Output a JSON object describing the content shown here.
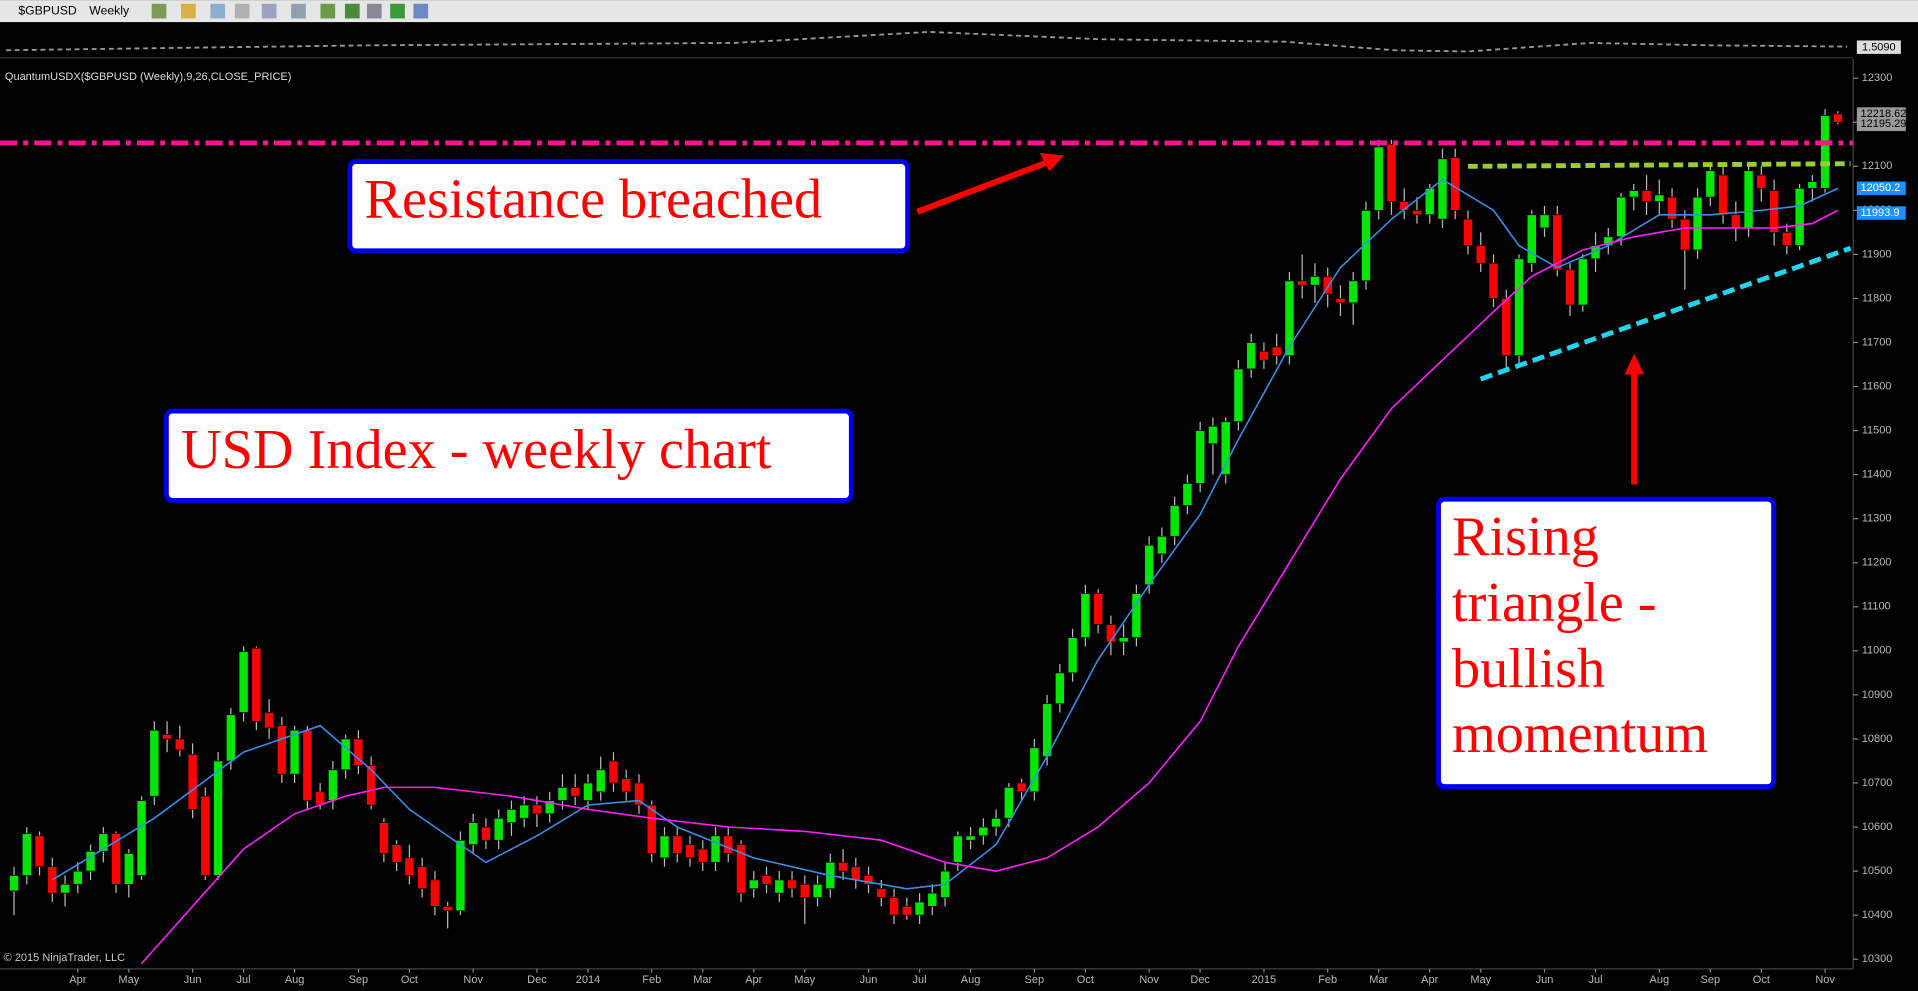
{
  "toolbar": {
    "instrument": "$GBPUSD",
    "period": "Weekly"
  },
  "chart_data": {
    "type": "candlestick",
    "title": "QuantumUSDX($GBPUSD (Weekly),9,26,CLOSE_PRICE)",
    "overview_label": "1.5090",
    "copyright": "© 2015 NinjaTrader, LLC",
    "up_color": "#00e600",
    "down_color": "#ff0000",
    "xlim": [
      -1.1,
      144.2
    ],
    "ylim": [
      10278,
      12344
    ],
    "yticks": [
      10300,
      10400,
      10500,
      10600,
      10700,
      10800,
      10900,
      11000,
      11100,
      11200,
      11300,
      11400,
      11500,
      11600,
      11700,
      11800,
      11900,
      12000,
      12100,
      12200,
      12300
    ],
    "xticks": [
      {
        "value": 5,
        "label": "Apr"
      },
      {
        "value": 9,
        "label": "May"
      },
      {
        "value": 14,
        "label": "Jun"
      },
      {
        "value": 18,
        "label": "Jul"
      },
      {
        "value": 22,
        "label": "Aug"
      },
      {
        "value": 27,
        "label": "Sep"
      },
      {
        "value": 31,
        "label": "Oct"
      },
      {
        "value": 36,
        "label": "Nov"
      },
      {
        "value": 41,
        "label": "Dec"
      },
      {
        "value": 45,
        "label": "2014"
      },
      {
        "value": 50,
        "label": "Feb"
      },
      {
        "value": 54,
        "label": "Mar"
      },
      {
        "value": 58,
        "label": "Apr"
      },
      {
        "value": 62,
        "label": "May"
      },
      {
        "value": 67,
        "label": "Jun"
      },
      {
        "value": 71,
        "label": "Jul"
      },
      {
        "value": 75,
        "label": "Aug"
      },
      {
        "value": 80,
        "label": "Sep"
      },
      {
        "value": 84,
        "label": "Oct"
      },
      {
        "value": 89,
        "label": "Nov"
      },
      {
        "value": 93,
        "label": "Dec"
      },
      {
        "value": 98,
        "label": "2015"
      },
      {
        "value": 103,
        "label": "Feb"
      },
      {
        "value": 107,
        "label": "Mar"
      },
      {
        "value": 111,
        "label": "Apr"
      },
      {
        "value": 115,
        "label": "May"
      },
      {
        "value": 120,
        "label": "Jun"
      },
      {
        "value": 124,
        "label": "Jul"
      },
      {
        "value": 129,
        "label": "Aug"
      },
      {
        "value": 133,
        "label": "Sep"
      },
      {
        "value": 137,
        "label": "Oct"
      },
      {
        "value": 142,
        "label": "Nov"
      }
    ],
    "candles": [
      [
        10455,
        10510,
        10400,
        10490
      ],
      [
        10490,
        10600,
        10470,
        10585
      ],
      [
        10580,
        10590,
        10490,
        10510
      ],
      [
        10510,
        10530,
        10430,
        10450
      ],
      [
        10450,
        10490,
        10420,
        10470
      ],
      [
        10470,
        10520,
        10450,
        10500
      ],
      [
        10500,
        10560,
        10480,
        10545
      ],
      [
        10545,
        10600,
        10520,
        10585
      ],
      [
        10585,
        10590,
        10450,
        10470
      ],
      [
        10470,
        10550,
        10440,
        10540
      ],
      [
        10490,
        10670,
        10480,
        10660
      ],
      [
        10670,
        10840,
        10650,
        10820
      ],
      [
        10810,
        10840,
        10770,
        10800
      ],
      [
        10800,
        10830,
        10760,
        10775
      ],
      [
        10765,
        10790,
        10620,
        10640
      ],
      [
        10670,
        10690,
        10480,
        10490
      ],
      [
        10490,
        10770,
        10480,
        10750
      ],
      [
        10750,
        10870,
        10730,
        10855
      ],
      [
        10860,
        11010,
        10840,
        10998
      ],
      [
        11006,
        11010,
        10820,
        10840
      ],
      [
        10860,
        10890,
        10800,
        10825
      ],
      [
        10830,
        10850,
        10700,
        10720
      ],
      [
        10720,
        10830,
        10700,
        10820
      ],
      [
        10820,
        10830,
        10640,
        10660
      ],
      [
        10680,
        10700,
        10640,
        10650
      ],
      [
        10660,
        10750,
        10640,
        10730
      ],
      [
        10730,
        10810,
        10710,
        10800
      ],
      [
        10800,
        10820,
        10720,
        10740
      ],
      [
        10740,
        10760,
        10640,
        10650
      ],
      [
        10610,
        10620,
        10520,
        10540
      ],
      [
        10560,
        10570,
        10500,
        10520
      ],
      [
        10530,
        10560,
        10470,
        10490
      ],
      [
        10510,
        10530,
        10440,
        10460
      ],
      [
        10480,
        10500,
        10400,
        10420
      ],
      [
        10420,
        10430,
        10370,
        10410
      ],
      [
        10410,
        10590,
        10400,
        10570
      ],
      [
        10560,
        10630,
        10540,
        10610
      ],
      [
        10600,
        10620,
        10550,
        10570
      ],
      [
        10570,
        10640,
        10550,
        10620
      ],
      [
        10610,
        10660,
        10580,
        10640
      ],
      [
        10620,
        10670,
        10600,
        10650
      ],
      [
        10650,
        10670,
        10600,
        10630
      ],
      [
        10630,
        10680,
        10610,
        10660
      ],
      [
        10660,
        10720,
        10640,
        10690
      ],
      [
        10690,
        10720,
        10650,
        10670
      ],
      [
        10660,
        10720,
        10640,
        10700
      ],
      [
        10680,
        10760,
        10660,
        10730
      ],
      [
        10750,
        10770,
        10680,
        10700
      ],
      [
        10710,
        10730,
        10660,
        10680
      ],
      [
        10700,
        10720,
        10630,
        10650
      ],
      [
        10650,
        10660,
        10520,
        10540
      ],
      [
        10530,
        10600,
        10510,
        10580
      ],
      [
        10580,
        10600,
        10520,
        10540
      ],
      [
        10560,
        10580,
        10510,
        10530
      ],
      [
        10550,
        10570,
        10500,
        10520
      ],
      [
        10520,
        10600,
        10500,
        10580
      ],
      [
        10580,
        10600,
        10520,
        10540
      ],
      [
        10560,
        10570,
        10430,
        10450
      ],
      [
        10460,
        10500,
        10440,
        10480
      ],
      [
        10490,
        10510,
        10450,
        10470
      ],
      [
        10450,
        10500,
        10430,
        10480
      ],
      [
        10480,
        10500,
        10440,
        10460
      ],
      [
        10470,
        10490,
        10380,
        10440
      ],
      [
        10440,
        10490,
        10420,
        10470
      ],
      [
        10460,
        10540,
        10440,
        10520
      ],
      [
        10520,
        10550,
        10480,
        10500
      ],
      [
        10510,
        10530,
        10460,
        10480
      ],
      [
        10490,
        10510,
        10450,
        10470
      ],
      [
        10460,
        10480,
        10420,
        10440
      ],
      [
        10440,
        10460,
        10380,
        10400
      ],
      [
        10420,
        10440,
        10390,
        10400
      ],
      [
        10400,
        10450,
        10380,
        10430
      ],
      [
        10420,
        10470,
        10400,
        10450
      ],
      [
        10440,
        10520,
        10420,
        10500
      ],
      [
        10520,
        10590,
        10500,
        10580
      ],
      [
        10570,
        10600,
        10550,
        10580
      ],
      [
        10580,
        10620,
        10560,
        10600
      ],
      [
        10600,
        10640,
        10580,
        10620
      ],
      [
        10620,
        10700,
        10600,
        10690
      ],
      [
        10700,
        10710,
        10660,
        10680
      ],
      [
        10680,
        10800,
        10660,
        10780
      ],
      [
        10760,
        10900,
        10740,
        10880
      ],
      [
        10880,
        10970,
        10860,
        10950
      ],
      [
        10950,
        11050,
        10930,
        11030
      ],
      [
        11030,
        11150,
        11010,
        11130
      ],
      [
        11130,
        11140,
        11040,
        11060
      ],
      [
        11060,
        11080,
        10990,
        11020
      ],
      [
        11020,
        11060,
        10990,
        11030
      ],
      [
        11030,
        11150,
        11010,
        11130
      ],
      [
        11150,
        11260,
        11130,
        11240
      ],
      [
        11220,
        11280,
        11200,
        11260
      ],
      [
        11260,
        11350,
        11240,
        11330
      ],
      [
        11330,
        11400,
        11310,
        11380
      ],
      [
        11380,
        11520,
        11360,
        11500
      ],
      [
        11470,
        11530,
        11400,
        11510
      ],
      [
        11400,
        11530,
        11380,
        11520
      ],
      [
        11520,
        11660,
        11500,
        11640
      ],
      [
        11640,
        11720,
        11620,
        11700
      ],
      [
        11680,
        11700,
        11640,
        11660
      ],
      [
        11690,
        11720,
        11650,
        11670
      ],
      [
        11670,
        11860,
        11650,
        11840
      ],
      [
        11840,
        11900,
        11800,
        11830
      ],
      [
        11830,
        11880,
        11790,
        11850
      ],
      [
        11850,
        11870,
        11780,
        11810
      ],
      [
        11800,
        11830,
        11760,
        11790
      ],
      [
        11790,
        11860,
        11740,
        11840
      ],
      [
        11840,
        12020,
        11820,
        12000
      ],
      [
        12000,
        12160,
        11980,
        12144
      ],
      [
        12150,
        12160,
        11990,
        12020
      ],
      [
        12020,
        12050,
        11980,
        12000
      ],
      [
        12000,
        12030,
        11970,
        11990
      ],
      [
        11990,
        12060,
        11970,
        12050
      ],
      [
        11980,
        12140,
        11960,
        12117
      ],
      [
        12120,
        12140,
        11980,
        12000
      ],
      [
        11980,
        12000,
        11900,
        11920
      ],
      [
        11920,
        11950,
        11860,
        11880
      ],
      [
        11880,
        11900,
        11780,
        11800
      ],
      [
        11800,
        11820,
        11640,
        11670
      ],
      [
        11670,
        11900,
        11650,
        11890
      ],
      [
        11880,
        12000,
        11860,
        11990
      ],
      [
        11960,
        12010,
        11940,
        11990
      ],
      [
        11990,
        12010,
        11850,
        11865
      ],
      [
        11865,
        11880,
        11760,
        11785
      ],
      [
        11785,
        11900,
        11770,
        11890
      ],
      [
        11890,
        11950,
        11860,
        11920
      ],
      [
        11920,
        11960,
        11900,
        11940
      ],
      [
        11940,
        12040,
        11920,
        12030
      ],
      [
        12030,
        12060,
        12000,
        12045
      ],
      [
        12045,
        12080,
        11990,
        12020
      ],
      [
        12020,
        12070,
        11990,
        12035
      ],
      [
        12030,
        12050,
        11960,
        11980
      ],
      [
        11980,
        12000,
        11820,
        11910
      ],
      [
        11910,
        12050,
        11890,
        12030
      ],
      [
        12030,
        12110,
        12010,
        12090
      ],
      [
        12080,
        12100,
        11970,
        11990
      ],
      [
        11990,
        12020,
        11930,
        11960
      ],
      [
        11960,
        12110,
        11940,
        12090
      ],
      [
        12080,
        12100,
        12020,
        12050
      ],
      [
        12045,
        12070,
        11920,
        11950
      ],
      [
        11950,
        11970,
        11900,
        11920
      ],
      [
        11920,
        12060,
        11910,
        12050
      ],
      [
        12050,
        12080,
        12020,
        12065
      ],
      [
        12050,
        12230,
        12040,
        12215
      ],
      [
        12219,
        12225,
        12195,
        12200
      ]
    ],
    "lines": [
      {
        "color": "#3a8ee6",
        "x": [
          3,
          11,
          18,
          24,
          28,
          31,
          37,
          41,
          45,
          49,
          52,
          58,
          64,
          70,
          73,
          77,
          81,
          85,
          89,
          93,
          96,
          100,
          104,
          108,
          112,
          116,
          118,
          121,
          125,
          129,
          133,
          137,
          140,
          143
        ],
        "values": [
          10480,
          10620,
          10770,
          10830,
          10730,
          10640,
          10520,
          10580,
          10650,
          10660,
          10600,
          10530,
          10490,
          10460,
          10470,
          10560,
          10760,
          10980,
          11150,
          11310,
          11480,
          11690,
          11870,
          11980,
          12070,
          12000,
          11920,
          11870,
          11920,
          11990,
          11990,
          12000,
          12010,
          12050
        ]
      },
      {
        "color": "#ff22ff",
        "x": [
          10,
          14,
          18,
          22,
          26,
          29,
          33,
          39,
          45,
          50,
          56,
          62,
          68,
          73,
          77,
          81,
          85,
          89,
          93,
          96,
          100,
          104,
          108,
          112,
          116,
          119,
          123,
          127,
          131,
          135,
          138,
          141,
          143
        ],
        "values": [
          10290,
          10420,
          10550,
          10630,
          10670,
          10690,
          10690,
          10670,
          10640,
          10620,
          10600,
          10590,
          10570,
          10520,
          10500,
          10530,
          10600,
          10700,
          10840,
          11010,
          11200,
          11390,
          11550,
          11660,
          11770,
          11850,
          11910,
          11940,
          11960,
          11960,
          11960,
          11970,
          12000
        ]
      }
    ],
    "trendlines": [
      {
        "color": "#ff1493",
        "dash": "14 5 4 5",
        "x": [
          -1.1,
          144.2
        ],
        "values": [
          12153,
          12153
        ]
      },
      {
        "color": "#9acd32",
        "dash": "8 4",
        "x": [
          114,
          144
        ],
        "values": [
          12100,
          12106
        ]
      },
      {
        "color": "#22d3ee",
        "dash": "10 5",
        "x": [
          115,
          144
        ],
        "values": [
          11617,
          11914
        ]
      }
    ],
    "price_flags": [
      {
        "value": 12218.62,
        "color": "#9a9a9a",
        "text_color": "#000"
      },
      {
        "value": 12195.29,
        "color": "#9a9a9a",
        "text_color": "#000"
      },
      {
        "value": 12050.2,
        "color": "#1e90ff",
        "text_color": "#fff"
      },
      {
        "value": 11993.9,
        "color": "#1e90ff",
        "text_color": "#fff"
      }
    ],
    "annotations": [
      {
        "text": "Resistance breached"
      },
      {
        "text": "USD Index - weekly chart"
      },
      {
        "lines": [
          "Rising",
          "triangle -",
          "bullish",
          "momentum"
        ]
      }
    ]
  }
}
